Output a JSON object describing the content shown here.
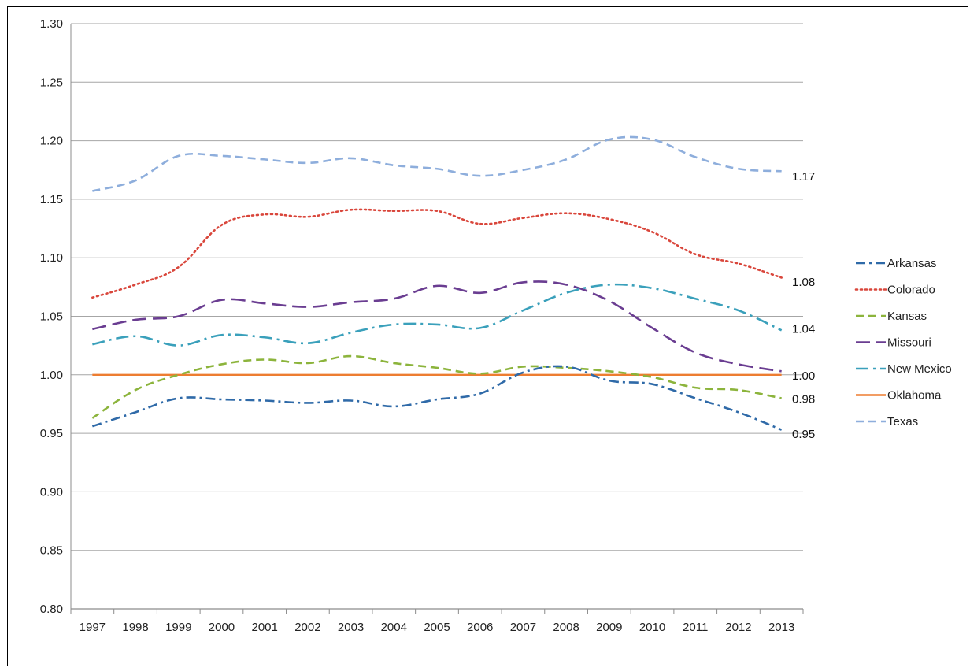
{
  "chart_data": {
    "type": "line",
    "title": "",
    "xlabel": "",
    "ylabel": "",
    "ylim": [
      0.8,
      1.3
    ],
    "yticks": [
      "0.80",
      "0.85",
      "0.90",
      "0.95",
      "1.00",
      "1.05",
      "1.10",
      "1.15",
      "1.20",
      "1.25",
      "1.30"
    ],
    "x": [
      "1997",
      "1998",
      "1999",
      "2000",
      "2001",
      "2002",
      "2003",
      "2004",
      "2005",
      "2006",
      "2007",
      "2008",
      "2009",
      "2010",
      "2011",
      "2012",
      "2013"
    ],
    "grid": true,
    "legend_position": "right",
    "series": [
      {
        "name": "Arkansas",
        "color": "#2f6aa8",
        "dash": "dashdot",
        "values": [
          0.956,
          0.968,
          0.98,
          0.979,
          0.978,
          0.976,
          0.978,
          0.973,
          0.979,
          0.984,
          1.002,
          1.007,
          0.995,
          0.992,
          0.98,
          0.968,
          0.953
        ]
      },
      {
        "name": "Colorado",
        "color": "#d9463b",
        "dash": "dot",
        "values": [
          1.066,
          1.077,
          1.092,
          1.128,
          1.137,
          1.135,
          1.141,
          1.14,
          1.14,
          1.129,
          1.134,
          1.138,
          1.133,
          1.122,
          1.103,
          1.095,
          1.083
        ]
      },
      {
        "name": "Kansas",
        "color": "#8cb43c",
        "dash": "dash",
        "values": [
          0.963,
          0.987,
          1.0,
          1.009,
          1.013,
          1.01,
          1.016,
          1.01,
          1.006,
          1.001,
          1.007,
          1.006,
          1.003,
          0.998,
          0.989,
          0.987,
          0.98
        ]
      },
      {
        "name": "Missouri",
        "color": "#6a3d91",
        "dash": "longdash",
        "values": [
          1.039,
          1.047,
          1.05,
          1.064,
          1.061,
          1.058,
          1.062,
          1.065,
          1.076,
          1.07,
          1.079,
          1.077,
          1.063,
          1.04,
          1.019,
          1.009,
          1.003
        ]
      },
      {
        "name": "New Mexico",
        "color": "#3aa0bb",
        "dash": "longdashdot",
        "values": [
          1.026,
          1.033,
          1.025,
          1.034,
          1.032,
          1.027,
          1.036,
          1.043,
          1.043,
          1.04,
          1.055,
          1.07,
          1.077,
          1.074,
          1.065,
          1.055,
          1.038
        ]
      },
      {
        "name": "Oklahoma",
        "color": "#ed7d31",
        "dash": "solid",
        "values": [
          1.0,
          1.0,
          1.0,
          1.0,
          1.0,
          1.0,
          1.0,
          1.0,
          1.0,
          1.0,
          1.0,
          1.0,
          1.0,
          1.0,
          1.0,
          1.0,
          1.0
        ]
      },
      {
        "name": "Texas",
        "color": "#8eaedc",
        "dash": "dash",
        "values": [
          1.157,
          1.166,
          1.187,
          1.187,
          1.184,
          1.181,
          1.185,
          1.179,
          1.176,
          1.17,
          1.175,
          1.184,
          1.201,
          1.201,
          1.186,
          1.176,
          1.174
        ]
      }
    ],
    "end_labels": [
      {
        "text": "1.17",
        "value": 1.17
      },
      {
        "text": "1.08",
        "value": 1.08
      },
      {
        "text": "1.04",
        "value": 1.04
      },
      {
        "text": "1.00",
        "value": 1.0
      },
      {
        "text": "0.98",
        "value": 0.98
      },
      {
        "text": "0.95",
        "value": 0.95
      }
    ]
  }
}
